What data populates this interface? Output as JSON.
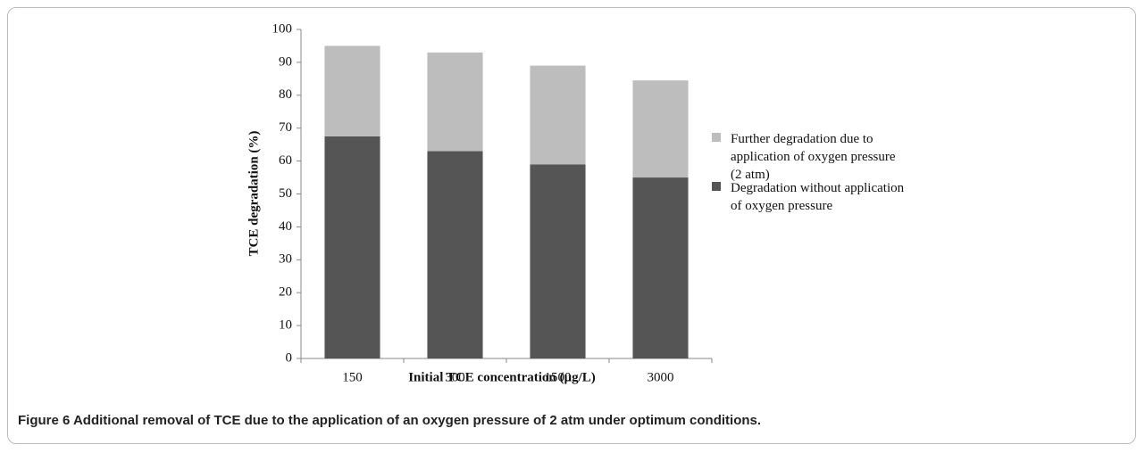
{
  "chart_data": {
    "type": "stacked_bar",
    "caption": "Figure 6 Additional removal of TCE due to the application of an oxygen pressure of 2 atm under optimum conditions.",
    "x_label": "Initial TCE concentration (µg/L)",
    "y_label": "TCE degradation (%)",
    "categories": [
      "150",
      "300",
      "1500",
      "3000"
    ],
    "series": [
      {
        "name": "Degradation without application of oxygen pressure",
        "color": "#555555",
        "values": [
          67.5,
          63,
          59,
          55
        ]
      },
      {
        "name": "Further degradation due to application of oxygen pressure (2 atm)",
        "color": "#bdbdbd",
        "values": [
          27.5,
          30,
          30,
          29.5
        ]
      }
    ],
    "ylim": [
      0,
      100
    ],
    "yticks": [
      0,
      10,
      20,
      30,
      40,
      50,
      60,
      70,
      80,
      90,
      100
    ]
  }
}
